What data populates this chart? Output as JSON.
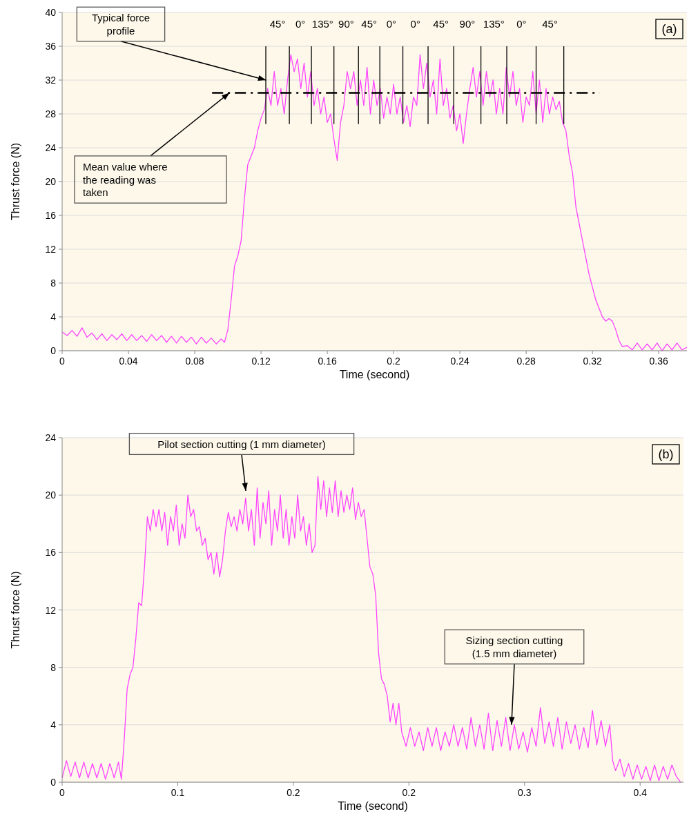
{
  "chart_data": [
    {
      "type": "line",
      "xlabel": "Time (second)",
      "ylabel": "Thrust force (N)",
      "xlim": [
        0,
        0.377
      ],
      "xticks": [
        0,
        0.04,
        0.08,
        0.12,
        0.16,
        0.2,
        0.24,
        0.28,
        0.32,
        0.36
      ],
      "ylim": [
        0,
        40
      ],
      "yticks": [
        0,
        4,
        8,
        12,
        16,
        20,
        24,
        28,
        32,
        36,
        40
      ],
      "grid": "y",
      "marker": "none",
      "line_style": "solid",
      "ref_lines": [
        {
          "axis": "y",
          "value": 30.5,
          "color": "#000000",
          "line_style": "dashed"
        },
        {
          "axis": "x",
          "value": 0.1229,
          "color": "#000000"
        },
        {
          "axis": "x",
          "value": 0.1371,
          "color": "#000000"
        },
        {
          "axis": "x",
          "value": 0.1504,
          "color": "#000000"
        },
        {
          "axis": "x",
          "value": 0.164,
          "color": "#000000"
        },
        {
          "axis": "x",
          "value": 0.1788,
          "color": "#000000"
        },
        {
          "axis": "x",
          "value": 0.1917,
          "color": "#000000"
        },
        {
          "axis": "x",
          "value": 0.2056,
          "color": "#000000"
        },
        {
          "axis": "x",
          "value": 0.2208,
          "color": "#000000"
        },
        {
          "axis": "x",
          "value": 0.2363,
          "color": "#000000"
        },
        {
          "axis": "x",
          "value": 0.2527,
          "color": "#000000"
        },
        {
          "axis": "x",
          "value": 0.2683,
          "color": "#000000"
        },
        {
          "axis": "x",
          "value": 0.286,
          "color": "#000000"
        },
        {
          "axis": "x",
          "value": 0.3027,
          "color": "#000000"
        }
      ],
      "annotations": [
        {
          "text": "Typical force profile",
          "x": 0.123,
          "y": 32
        },
        {
          "text": "Mean value where the reading was taken",
          "x": 0.101,
          "y": 30.5
        },
        "(a)",
        "45°",
        "0°",
        "135°",
        "90°",
        "45°",
        "0°",
        "0°",
        "45°",
        "90°",
        "135°",
        "0°",
        "45°"
      ],
      "series": [
        {
          "color": "#ff44ff",
          "x": [
            0,
            0.003,
            0.006,
            0.009,
            0.012,
            0.015,
            0.018,
            0.021,
            0.024,
            0.027,
            0.03,
            0.033,
            0.036,
            0.039,
            0.042,
            0.045,
            0.048,
            0.051,
            0.054,
            0.057,
            0.06,
            0.063,
            0.066,
            0.069,
            0.072,
            0.075,
            0.078,
            0.081,
            0.084,
            0.087,
            0.09,
            0.093,
            0.096,
            0.098,
            0.1,
            0.102,
            0.104,
            0.106,
            0.108,
            0.11,
            0.112,
            0.114,
            0.116,
            0.118,
            0.12,
            0.122,
            0.124,
            0.126,
            0.128,
            0.13,
            0.132,
            0.134,
            0.136,
            0.138,
            0.14,
            0.142,
            0.144,
            0.146,
            0.148,
            0.15,
            0.152,
            0.154,
            0.156,
            0.158,
            0.16,
            0.162,
            0.164,
            0.166,
            0.168,
            0.17,
            0.172,
            0.174,
            0.176,
            0.178,
            0.18,
            0.182,
            0.184,
            0.186,
            0.188,
            0.19,
            0.192,
            0.194,
            0.196,
            0.198,
            0.2,
            0.202,
            0.204,
            0.206,
            0.208,
            0.21,
            0.212,
            0.214,
            0.216,
            0.218,
            0.22,
            0.222,
            0.224,
            0.226,
            0.228,
            0.23,
            0.232,
            0.234,
            0.236,
            0.238,
            0.24,
            0.242,
            0.244,
            0.246,
            0.248,
            0.25,
            0.252,
            0.254,
            0.256,
            0.258,
            0.26,
            0.262,
            0.264,
            0.266,
            0.268,
            0.27,
            0.272,
            0.274,
            0.276,
            0.278,
            0.28,
            0.282,
            0.284,
            0.286,
            0.288,
            0.29,
            0.292,
            0.294,
            0.296,
            0.298,
            0.3,
            0.302,
            0.304,
            0.306,
            0.308,
            0.31,
            0.312,
            0.314,
            0.316,
            0.318,
            0.32,
            0.322,
            0.324,
            0.326,
            0.328,
            0.33,
            0.332,
            0.334,
            0.336,
            0.338,
            0.341,
            0.344,
            0.347,
            0.35,
            0.353,
            0.356,
            0.359,
            0.362,
            0.365,
            0.368,
            0.371,
            0.374,
            0.377
          ],
          "values": [
            2.2,
            1.8,
            2.4,
            1.7,
            2.7,
            1.6,
            2.1,
            1.3,
            2,
            1.2,
            1.9,
            1.3,
            2,
            1.2,
            1.9,
            1.2,
            1.8,
            1.1,
            1.9,
            1.2,
            1.8,
            1,
            1.7,
            0.9,
            1.7,
            1,
            1.6,
            0.8,
            1.6,
            0.9,
            1.5,
            0.8,
            1.4,
            1,
            2.5,
            6,
            10,
            11.2,
            13,
            18,
            22,
            23,
            24,
            26,
            27.5,
            28.5,
            31,
            29,
            33,
            29,
            31,
            28,
            32,
            35,
            33,
            34.5,
            31,
            34,
            30,
            33,
            29,
            31,
            28,
            30,
            27,
            28,
            25,
            22.5,
            27,
            29,
            33,
            31,
            33,
            29,
            32,
            29,
            33.5,
            28,
            32,
            29,
            31,
            27.5,
            30,
            28,
            31.5,
            28,
            30,
            27,
            29,
            26.5,
            30,
            29,
            35,
            31,
            34,
            30,
            32,
            28,
            34.5,
            29,
            31,
            27.5,
            29,
            26,
            28,
            24.5,
            28,
            31,
            33.5,
            30,
            33,
            29,
            33,
            30,
            32,
            28,
            31,
            28,
            33.5,
            30,
            33,
            29,
            31,
            27,
            30,
            29,
            33,
            28,
            32,
            27,
            31,
            28,
            30,
            28.5,
            29.5,
            27,
            26,
            23,
            21,
            17,
            15,
            13,
            11,
            9,
            7.5,
            6,
            5,
            4,
            3.5,
            3.8,
            3.5,
            2.5,
            1.2,
            0.5,
            0.6,
            0.1,
            0.9,
            0.1,
            0.8,
            0.1,
            0.9,
            0,
            0.8,
            0.1,
            0.9,
            0.1,
            0.4
          ]
        }
      ]
    },
    {
      "type": "line",
      "xlabel": "Time (second)",
      "ylabel": "Thrust force (N)",
      "xlim": [
        0,
        0.43
      ],
      "xticks": [
        0,
        {
          "value": 0.08,
          "label": "0.1"
        },
        {
          "value": 0.16,
          "label": "0.2"
        },
        {
          "value": 0.24,
          "label": "0.2"
        },
        {
          "value": 0.32,
          "label": "0.3"
        },
        {
          "value": 0.4,
          "label": "0.4"
        }
      ],
      "ylim": [
        0,
        24
      ],
      "yticks": [
        0,
        4,
        8,
        12,
        16,
        20,
        24
      ],
      "grid": "y",
      "marker": "none",
      "line_style": "solid",
      "annotations": [
        "Pilot section cutting (1 mm diameter)",
        {
          "text": "Sizing section cutting (1.5 mm diameter)",
          "x": 0.311,
          "y": 4
        },
        "(b)"
      ],
      "series": [
        {
          "color": "#ff44ff",
          "x": [
            0,
            0.003,
            0.006,
            0.009,
            0.012,
            0.015,
            0.018,
            0.021,
            0.024,
            0.027,
            0.03,
            0.033,
            0.036,
            0.039,
            0.041,
            0.043,
            0.045,
            0.047,
            0.049,
            0.051,
            0.053,
            0.055,
            0.057,
            0.059,
            0.061,
            0.063,
            0.065,
            0.067,
            0.069,
            0.071,
            0.073,
            0.075,
            0.077,
            0.079,
            0.081,
            0.083,
            0.085,
            0.087,
            0.089,
            0.091,
            0.093,
            0.095,
            0.097,
            0.099,
            0.101,
            0.103,
            0.105,
            0.107,
            0.109,
            0.111,
            0.113,
            0.115,
            0.117,
            0.119,
            0.121,
            0.123,
            0.125,
            0.127,
            0.129,
            0.131,
            0.133,
            0.135,
            0.137,
            0.139,
            0.141,
            0.143,
            0.145,
            0.147,
            0.149,
            0.151,
            0.153,
            0.155,
            0.157,
            0.159,
            0.161,
            0.163,
            0.165,
            0.167,
            0.169,
            0.171,
            0.173,
            0.175,
            0.177,
            0.179,
            0.181,
            0.183,
            0.185,
            0.187,
            0.189,
            0.191,
            0.193,
            0.195,
            0.197,
            0.199,
            0.201,
            0.203,
            0.205,
            0.207,
            0.209,
            0.211,
            0.213,
            0.215,
            0.217,
            0.219,
            0.221,
            0.223,
            0.225,
            0.227,
            0.229,
            0.231,
            0.233,
            0.235,
            0.238,
            0.241,
            0.244,
            0.247,
            0.25,
            0.253,
            0.256,
            0.259,
            0.262,
            0.265,
            0.268,
            0.271,
            0.274,
            0.277,
            0.28,
            0.283,
            0.286,
            0.289,
            0.292,
            0.295,
            0.298,
            0.301,
            0.304,
            0.307,
            0.31,
            0.313,
            0.316,
            0.319,
            0.322,
            0.325,
            0.328,
            0.331,
            0.334,
            0.337,
            0.34,
            0.343,
            0.346,
            0.349,
            0.352,
            0.355,
            0.358,
            0.361,
            0.364,
            0.367,
            0.37,
            0.373,
            0.376,
            0.379,
            0.381,
            0.383,
            0.386,
            0.389,
            0.392,
            0.395,
            0.398,
            0.401,
            0.404,
            0.407,
            0.41,
            0.413,
            0.416,
            0.419,
            0.422,
            0.425,
            0.428
          ],
          "values": [
            0.3,
            1.5,
            0.4,
            1.4,
            0.3,
            1.4,
            0.3,
            1.3,
            0.3,
            1.3,
            0.2,
            1.3,
            0.3,
            1.4,
            0.2,
            3,
            6.5,
            7.5,
            8,
            10,
            12.5,
            12.3,
            15,
            18.5,
            17.5,
            19,
            17.8,
            19,
            17.5,
            18.8,
            16.5,
            18.5,
            17.5,
            19.3,
            16.5,
            18,
            17,
            20,
            18.5,
            19,
            17.5,
            17.8,
            16.5,
            17,
            15.5,
            16,
            14.5,
            16,
            14.3,
            15.5,
            17.5,
            18.8,
            17.8,
            18.5,
            17.5,
            19,
            18,
            19.8,
            17.5,
            19,
            16.5,
            20.5,
            17,
            19.5,
            18,
            20.3,
            16.5,
            19,
            17.5,
            20,
            17,
            19,
            16.5,
            18.5,
            17,
            20,
            17.5,
            18.5,
            16.5,
            18,
            16,
            16.5,
            21.3,
            19,
            21,
            18.5,
            20.5,
            18.8,
            21,
            18.5,
            20.3,
            18.8,
            20,
            19,
            20.5,
            18.3,
            19.5,
            18.5,
            19,
            17,
            15,
            14.5,
            13,
            9,
            7.2,
            6.8,
            6,
            4.2,
            5.5,
            4,
            5.5,
            3.5,
            2.5,
            3.8,
            2.5,
            3.5,
            2.2,
            3.8,
            2.5,
            3.8,
            2.2,
            3.5,
            2.5,
            4,
            2.5,
            3.8,
            2.3,
            4.5,
            2.5,
            4,
            2.3,
            4.8,
            2.2,
            4.3,
            2.5,
            4.5,
            2.2,
            4,
            2.3,
            3.5,
            2.1,
            3.8,
            2.5,
            5.2,
            2.7,
            4.2,
            2.5,
            4.5,
            2.3,
            4.2,
            2.7,
            4,
            2.3,
            3.8,
            2.4,
            5,
            2.6,
            4.3,
            2.5,
            4,
            1.5,
            0.8,
            1.6,
            0.4,
            1.3,
            0.2,
            1.2,
            0.2,
            1.1,
            0.1,
            1.2,
            0.1,
            1.1,
            0.2,
            1.2,
            0.4,
            0
          ]
        }
      ]
    }
  ]
}
